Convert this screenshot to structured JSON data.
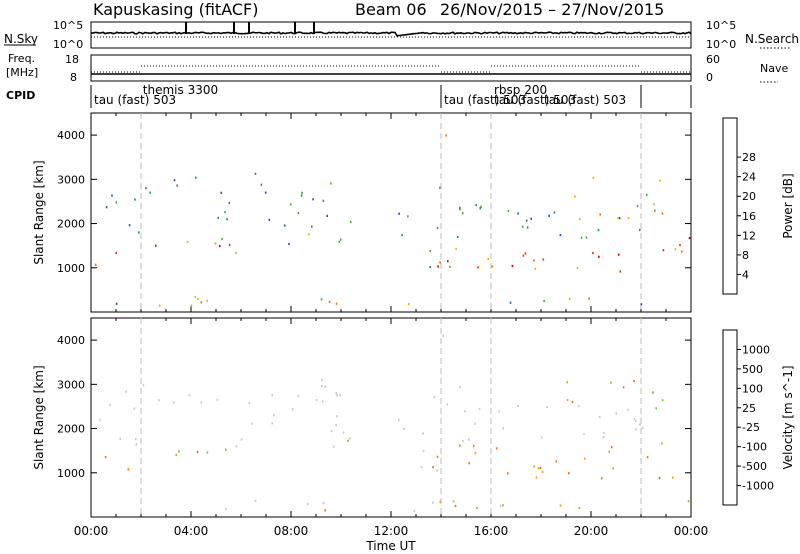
{
  "header": {
    "title": "Kapuskasing (fitACF)",
    "beam": "Beam 06",
    "dates": "26/Nov/2015 – 27/Nov/2015"
  },
  "left_labels": {
    "nsky": "N.Sky",
    "freq_line1": "Freq.",
    "freq_line2": "[MHz]",
    "cpid": "CPID"
  },
  "right_labels": {
    "nsearch": "N.Search",
    "nave": "Nave"
  },
  "noise_panel": {
    "left_ticks": [
      "10^5",
      "10^0"
    ],
    "right_ticks": [
      "10^5",
      "10^0"
    ]
  },
  "freq_panel": {
    "left_ticks": [
      "18",
      "8"
    ],
    "right_ticks": [
      "60",
      "0"
    ]
  },
  "cpid_panel": {
    "segments": [
      {
        "label": "tau (fast) 503",
        "start_hour": 0.0,
        "row": "bottom"
      },
      {
        "label": "themis 3300",
        "start_hour": 1.95,
        "row": "top"
      },
      {
        "label": "tau (fast) 503",
        "start_hour": 14.0,
        "row": "bottom"
      },
      {
        "label": "rbsp 200",
        "start_hour": 16.0,
        "row": "top"
      },
      {
        "label": "tau (fast) 503",
        "start_hour": 16.0,
        "row": "bottom"
      },
      {
        "label": "tau (fast) 503",
        "start_hour": 18.0,
        "row": "bottom"
      }
    ]
  },
  "chart_data": [
    {
      "type": "heatmap",
      "panel": "power",
      "ylabel": "Slant Range [km]",
      "ylim": [
        0,
        4500
      ],
      "yticks": [
        "1000",
        "2000",
        "3000",
        "4000"
      ],
      "xlim": [
        0,
        24
      ],
      "xticks": [
        "00:00",
        "04:00",
        "08:00",
        "12:00",
        "16:00",
        "20:00",
        "00:00"
      ],
      "colorbar": {
        "label": "Power [dB]",
        "ticks": [
          "4",
          "8",
          "12",
          "16",
          "20",
          "24",
          "28"
        ],
        "colors": [
          "#1010d0",
          "#2050c8",
          "#2a8a6a",
          "#4aaa3a",
          "#a8d020",
          "#f0b000",
          "#f07000",
          "#f03000",
          "#e00000"
        ]
      }
    },
    {
      "type": "heatmap",
      "panel": "velocity",
      "ylabel": "Slant Range [km]",
      "ylim": [
        0,
        4500
      ],
      "yticks": [
        "1000",
        "2000",
        "3000",
        "4000"
      ],
      "xlim": [
        0,
        24
      ],
      "xticks": [
        "00:00",
        "04:00",
        "08:00",
        "12:00",
        "16:00",
        "20:00",
        "00:00"
      ],
      "xlabel": "Time UT",
      "colorbar": {
        "label": "Velocity [m s^-1]",
        "ticks": [
          "1000",
          "500",
          "100",
          "25",
          "-25",
          "-100",
          "-500",
          "-1000"
        ],
        "colors": [
          "#1040c8",
          "#2a7a8a",
          "#2a9a4a",
          "#7ac040",
          "#c8c8c0",
          "#e8a020",
          "#f07010",
          "#f03000",
          "#e00000"
        ]
      }
    }
  ]
}
